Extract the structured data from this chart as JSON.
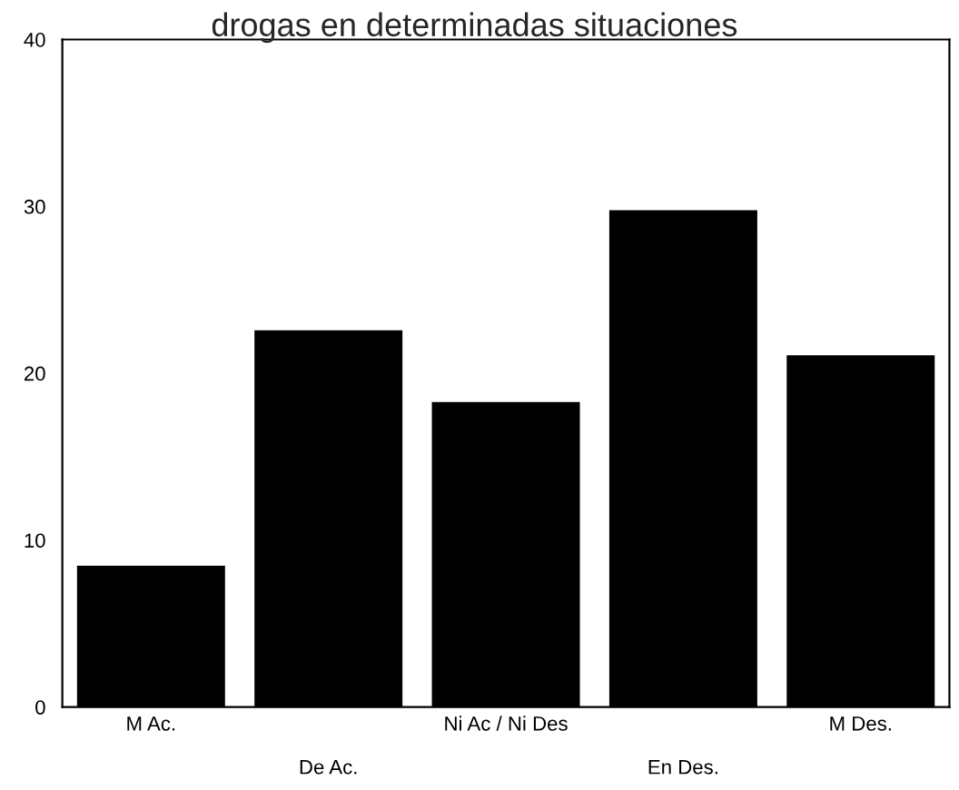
{
  "chart_data": {
    "type": "bar",
    "title": "drogas en determinadas situaciones",
    "categories": [
      "M Ac.",
      "De Ac.",
      "Ni Ac / Ni Des",
      "En Des.",
      "M Des."
    ],
    "values": [
      8.4,
      22.5,
      18.2,
      29.7,
      21.0
    ],
    "color": "#000000",
    "ylim": [
      0,
      40
    ],
    "yticks": [
      0,
      10,
      20,
      30,
      40
    ],
    "grid": false
  }
}
